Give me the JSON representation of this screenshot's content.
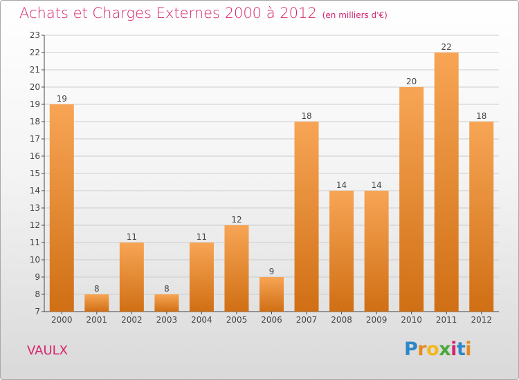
{
  "header": {
    "title": "Achats et Charges Externes 2000 à 2012",
    "unit": "(en milliers d'€)"
  },
  "footer": {
    "location": "VAULX",
    "brand": "Proxiti",
    "brand_letters": [
      {
        "ch": "P",
        "color": "#2e86c9"
      },
      {
        "ch": "r",
        "color": "#e58a1f"
      },
      {
        "ch": "o",
        "color": "#f2b81c"
      },
      {
        "ch": "x",
        "color": "#4aa83c"
      },
      {
        "ch": "i",
        "color": "#d6246e"
      },
      {
        "ch": "t",
        "color": "#2e86c9"
      },
      {
        "ch": "i",
        "color": "#e58a1f"
      }
    ]
  },
  "colors": {
    "bar_light": "#f7a555",
    "bar_dark": "#d06f14",
    "axis": "#444444",
    "grid": "#cccccc",
    "accent": "#d6246e"
  },
  "chart_data": {
    "type": "bar",
    "title": "Achats et Charges Externes 2000 à 2012",
    "xlabel": "",
    "ylabel": "",
    "ylim": [
      7,
      23
    ],
    "yticks": [
      7,
      8,
      9,
      10,
      11,
      12,
      13,
      14,
      15,
      16,
      17,
      18,
      19,
      20,
      21,
      22,
      23
    ],
    "grid": true,
    "categories": [
      "2000",
      "2001",
      "2002",
      "2003",
      "2004",
      "2005",
      "2006",
      "2007",
      "2008",
      "2009",
      "2010",
      "2011",
      "2012"
    ],
    "values": [
      19,
      8,
      11,
      8,
      11,
      12,
      9,
      18,
      14,
      14,
      20,
      22,
      18
    ]
  }
}
